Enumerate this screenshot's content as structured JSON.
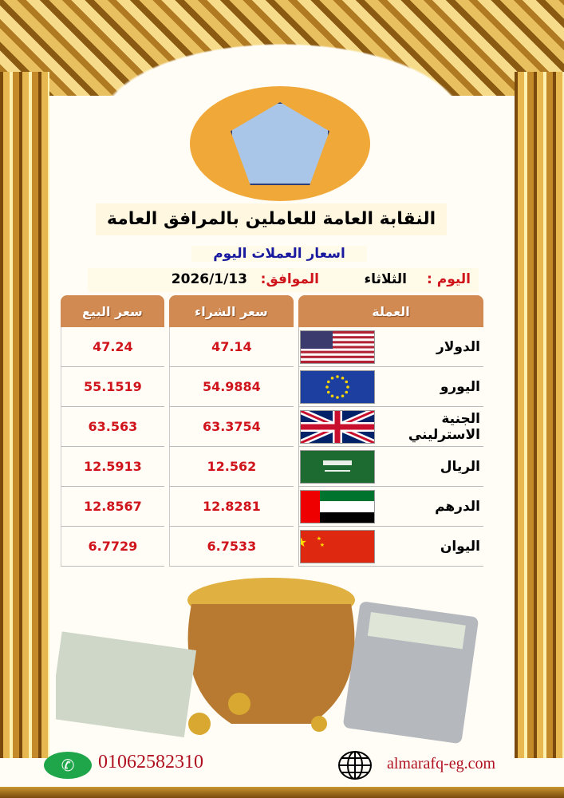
{
  "header": {
    "title": "النقابة العامة للعاملين بالمرافق العامة",
    "subtitle": "اسعار العملات اليوم",
    "day_label": "اليوم :",
    "day_value": "الثلاثاء",
    "date_label": "الموافق:",
    "date_value": "2026/1/13"
  },
  "table": {
    "headers": [
      "العملة",
      "سعر الشراء",
      "سعر البيع"
    ],
    "rows": [
      {
        "currency": "الدولار",
        "flag": "usa-flag",
        "buy": "47.14",
        "sell": "47.24"
      },
      {
        "currency": "اليورو",
        "flag": "eu-flag",
        "buy": "54.9884",
        "sell": "55.1519"
      },
      {
        "currency": "الجنية الاسترليني",
        "flag": "uk-flag",
        "buy": "63.3754",
        "sell": "63.563"
      },
      {
        "currency": "الريال",
        "flag": "saudi-flag",
        "buy": "12.562",
        "sell": "12.5913"
      },
      {
        "currency": "الدرهم",
        "flag": "uae-flag",
        "buy": "12.8281",
        "sell": "12.8567"
      },
      {
        "currency": "اليوان",
        "flag": "china-flag",
        "buy": "6.7533",
        "sell": "6.7729"
      }
    ]
  },
  "footer": {
    "phone": "01062582310",
    "website": "almarafq-eg.com"
  },
  "colors": {
    "header_bg": "#d08a52",
    "price": "#d0141c",
    "subtitle": "#1a1aa0",
    "gold": "#e7b850"
  }
}
